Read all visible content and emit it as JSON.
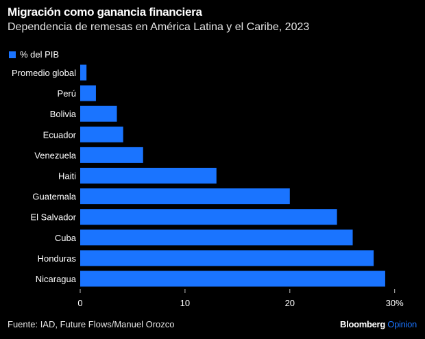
{
  "header": {
    "title": "Migración como ganancia financiera",
    "subtitle": "Dependencia de remesas en América Latina y el Caribe, 2023"
  },
  "footer": {
    "source": "Fuente: IAD, Future Flows/Manuel Orozco",
    "brand_main": "Bloomberg",
    "brand_accent": "Opinion"
  },
  "colors": {
    "bar": "#1a74ff",
    "background": "#000000",
    "text": "#ffffff"
  },
  "chart_data": {
    "type": "bar",
    "orientation": "horizontal",
    "title": "Migración como ganancia financiera",
    "subtitle": "Dependencia de remesas en América Latina y el Caribe, 2023",
    "legend": [
      "% del PIB"
    ],
    "legend_placement": "top-left",
    "categories": [
      "Promedio global",
      "Perú",
      "Bolivia",
      "Ecuador",
      "Venezuela",
      "Haiti",
      "Guatemala",
      "El Salvador",
      "Cuba",
      "Honduras",
      "Nicaragua"
    ],
    "series": [
      {
        "name": "% del PIB",
        "values": [
          0.6,
          1.5,
          3.5,
          4.1,
          6.0,
          13.0,
          20.0,
          24.5,
          26.0,
          28.0,
          29.1
        ]
      }
    ],
    "xlim": [
      0,
      30
    ],
    "xticks": [
      0,
      10,
      20,
      30
    ],
    "xtick_labels": [
      "0",
      "10",
      "20",
      "30%"
    ],
    "grid": false
  }
}
